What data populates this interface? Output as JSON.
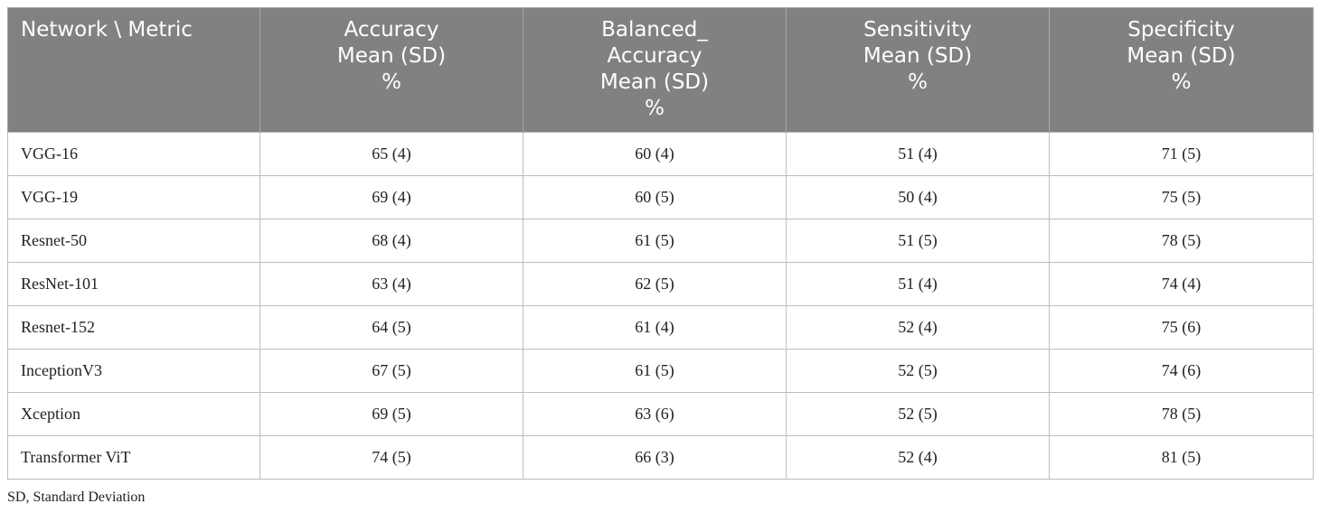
{
  "table": {
    "headers": [
      {
        "lines": [
          "Network \\ Metric"
        ]
      },
      {
        "lines": [
          "Accuracy",
          "Mean (SD)",
          "%"
        ]
      },
      {
        "lines": [
          "Balanced_",
          "Accuracy",
          "Mean (SD)",
          "%"
        ]
      },
      {
        "lines": [
          "Sensitivity",
          "Mean (SD)",
          "%"
        ]
      },
      {
        "lines": [
          "Specificity",
          "Mean (SD)",
          "%"
        ]
      }
    ],
    "rows": [
      [
        "VGG-16",
        "65 (4)",
        "60 (4)",
        "51 (4)",
        "71 (5)"
      ],
      [
        "VGG-19",
        "69 (4)",
        "60 (5)",
        "50 (4)",
        "75 (5)"
      ],
      [
        "Resnet-50",
        "68 (4)",
        "61 (5)",
        "51 (5)",
        "78 (5)"
      ],
      [
        "ResNet-101",
        "63 (4)",
        "62 (5)",
        "51 (4)",
        "74 (4)"
      ],
      [
        "Resnet-152",
        "64 (5)",
        "61 (4)",
        "52 (4)",
        "75 (6)"
      ],
      [
        "InceptionV3",
        "67 (5)",
        "61 (5)",
        "52 (5)",
        "74 (6)"
      ],
      [
        "Xception",
        "69 (5)",
        "63 (6)",
        "52 (5)",
        "78 (5)"
      ],
      [
        "Transformer ViT",
        "74 (5)",
        "66 (3)",
        "52 (4)",
        "81 (5)"
      ]
    ]
  },
  "footnote": "SD, Standard Deviation",
  "colors": {
    "header_bg": "#818181",
    "header_text": "#ffffff",
    "border": "#bdbdbd"
  }
}
